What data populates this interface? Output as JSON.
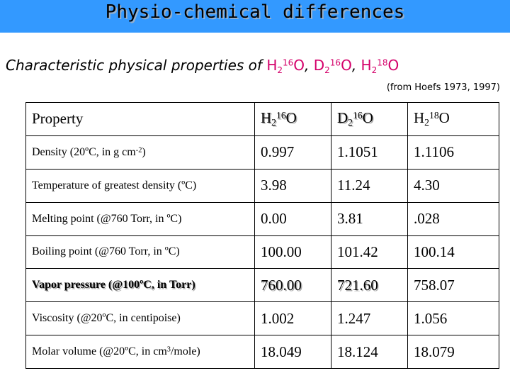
{
  "title": "Physio-chemical differences",
  "subtitle": {
    "prefix": "Characteristic physical properties of ",
    "iso1": {
      "sym": "H",
      "n": "2",
      "mass": "16",
      "el": "O"
    },
    "sep1": ", ",
    "iso2": {
      "sym": "D",
      "n": "2",
      "mass": "16",
      "el": "O"
    },
    "sep2": ", ",
    "iso3": {
      "sym": "H",
      "n": "2",
      "mass": "18",
      "el": "O"
    }
  },
  "source": "(from Hoefs 1973, 1997)",
  "table": {
    "header": {
      "property": "Property",
      "cols": [
        {
          "sym": "H",
          "n": "2",
          "mass": "16",
          "el": "O"
        },
        {
          "sym": "D",
          "n": "2",
          "mass": "16",
          "el": "O"
        },
        {
          "sym": "H",
          "n": "2",
          "mass": "18",
          "el": "O"
        }
      ]
    },
    "rows": [
      {
        "label": "Density (20ºC, in g cm",
        "label_sup": "-2",
        "label_post": ")",
        "values": [
          "0.997",
          "1.1051",
          "1.1106"
        ]
      },
      {
        "label": "Temperature of greatest density (ºC)",
        "values": [
          "3.98",
          "11.24",
          "4.30"
        ]
      },
      {
        "label": "Melting point (@760 Torr, in ºC)",
        "values": [
          "0.00",
          "3.81",
          ".028"
        ]
      },
      {
        "label": "Boiling point (@760 Torr, in ºC)",
        "values": [
          "100.00",
          "101.42",
          "100.14"
        ]
      },
      {
        "label": "Vapor pressure (@100ºC, in Torr)",
        "values": [
          "760.00",
          "721.60",
          "758.07"
        ]
      },
      {
        "label": "Viscosity (@20ºC, in centipoise)",
        "values": [
          "1.002",
          "1.247",
          "1.056"
        ]
      },
      {
        "label": "Molar volume (@20ºC, in cm",
        "label_sup": "3",
        "label_post": "/mole)",
        "values": [
          "18.049",
          "18.124",
          "18.079"
        ]
      }
    ]
  }
}
